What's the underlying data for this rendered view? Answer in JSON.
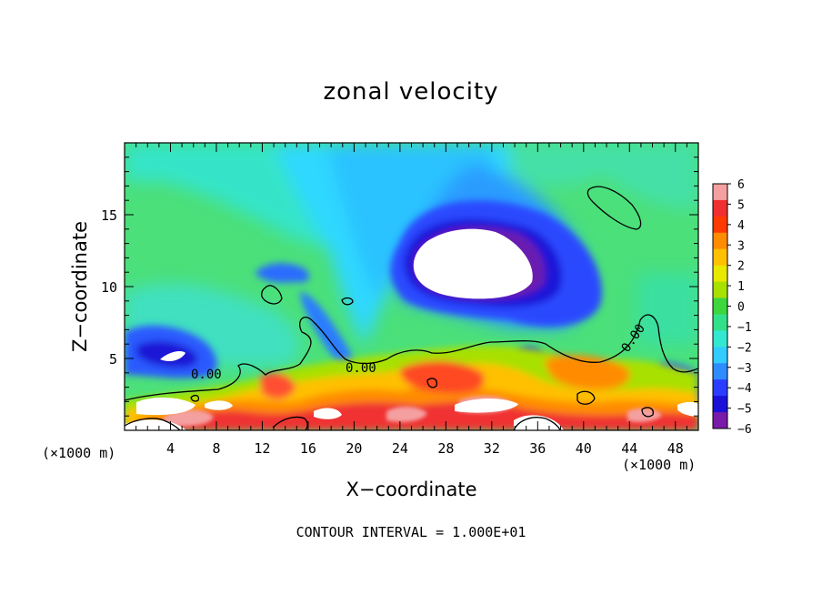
{
  "chart_data": {
    "type": "heatmap",
    "title": "zonal velocity",
    "xlabel": "X−coordinate",
    "ylabel": "Z−coordinate",
    "x_unit_left": "(×1000 m)",
    "x_unit_right": "(×1000 m)",
    "xlim": [
      0,
      50
    ],
    "ylim": [
      0,
      20
    ],
    "x_ticks": [
      4,
      8,
      12,
      16,
      20,
      24,
      28,
      32,
      36,
      40,
      44,
      48
    ],
    "y_ticks": [
      5,
      10,
      15
    ],
    "grid": false,
    "colorbar": {
      "position": "right",
      "tick_labels": [
        "6",
        "5",
        "4",
        "3",
        "2",
        "1",
        "0",
        "−1",
        "−2",
        "−3",
        "−4",
        "−5",
        "−6"
      ],
      "colors": [
        "#f5a0a0",
        "#f03030",
        "#ff3a00",
        "#ff8c00",
        "#ffc000",
        "#e8e800",
        "#a8e000",
        "#3dd63d",
        "#33e08a",
        "#33e8d0",
        "#33ccff",
        "#2e8cff",
        "#2a3cff",
        "#1a10d8",
        "#7a1aa8"
      ]
    },
    "contour_labels": [
      "0.00",
      "0.00",
      "0.00"
    ],
    "annotation": "CONTOUR INTERVAL = 1.000E+01"
  }
}
